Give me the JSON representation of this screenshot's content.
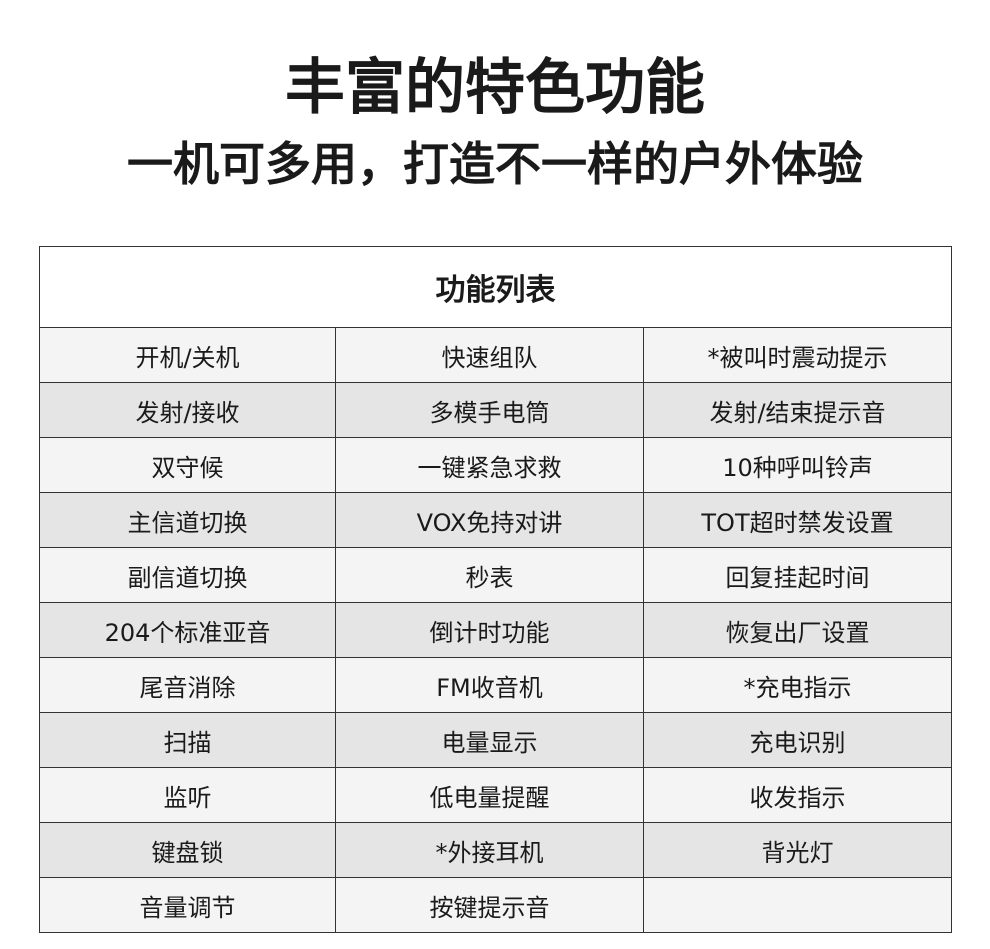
{
  "title": "丰富的特色功能",
  "subtitle": "一机可多用，打造不一样的户外体验",
  "table": {
    "header": "功能列表",
    "rows": [
      [
        "开机/关机",
        "快速组队",
        "*被叫时震动提示"
      ],
      [
        "发射/接收",
        "多模手电筒",
        "发射/结束提示音"
      ],
      [
        "双守候",
        "一键紧急求救",
        "10种呼叫铃声"
      ],
      [
        "主信道切换",
        "VOX免持对讲",
        "TOT超时禁发设置"
      ],
      [
        "副信道切换",
        "秒表",
        "回复挂起时间"
      ],
      [
        "204个标准亚音",
        "倒计时功能",
        "恢复出厂设置"
      ],
      [
        "尾音消除",
        "FM收音机",
        "*充电指示"
      ],
      [
        "扫描",
        "电量显示",
        "充电识别"
      ],
      [
        "监听",
        "低电量提醒",
        "收发指示"
      ],
      [
        "键盘锁",
        "*外接耳机",
        "背光灯"
      ],
      [
        "音量调节",
        "按键提示音",
        ""
      ]
    ]
  }
}
